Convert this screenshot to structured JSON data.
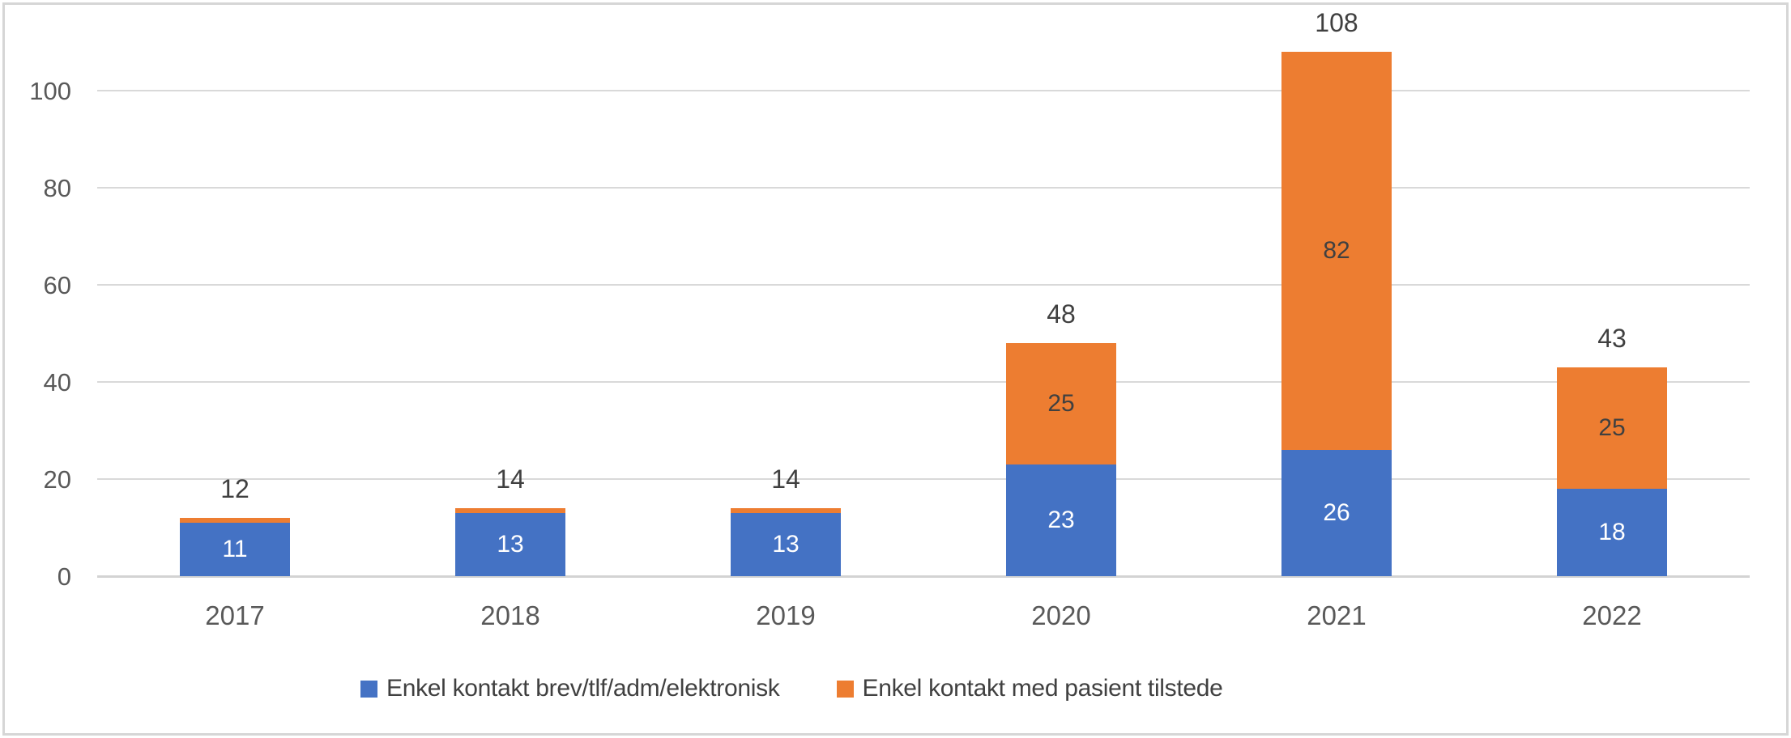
{
  "chart_data": {
    "type": "bar",
    "stacked": true,
    "title": "",
    "xlabel": "",
    "ylabel": "",
    "categories": [
      "2017",
      "2018",
      "2019",
      "2020",
      "2021",
      "2022"
    ],
    "series": [
      {
        "name": "Enkel kontakt brev/tlf/adm/elektronisk",
        "color": "#4472C4",
        "label_color": "#FFFFFF",
        "values": [
          11,
          13,
          13,
          23,
          26,
          18
        ]
      },
      {
        "name": "Enkel kontakt med pasient tilstede",
        "color": "#ED7D31",
        "label_color": "#404040",
        "values": [
          1,
          1,
          1,
          25,
          82,
          25
        ]
      }
    ],
    "totals": [
      12,
      14,
      14,
      48,
      108,
      43
    ],
    "yticks": [
      0,
      20,
      40,
      60,
      80,
      100
    ],
    "ylim": [
      0,
      110
    ],
    "grid": true,
    "legend_position": "bottom",
    "style_colors": {
      "gridline": "#D9D9D9",
      "axis_text": "#595959",
      "data_label_dark": "#404040",
      "data_label_light": "#FFFFFF"
    }
  }
}
